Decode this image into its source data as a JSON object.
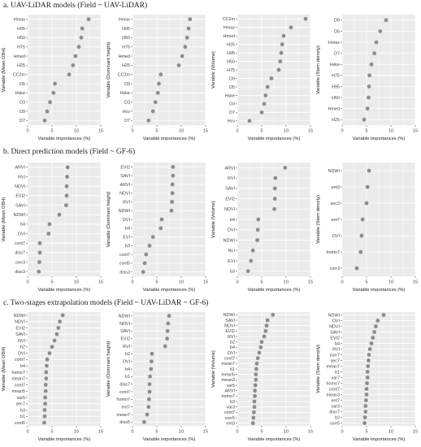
{
  "sections": [
    {
      "title": "a. UAV-LiDAR models (Field ~ UAV-LiDAR)"
    },
    {
      "title": "b. Direct prediction models (Field ~ GF-6)"
    },
    {
      "title": "c. Two-stages extrapolation models (Field ~ UAV-LiDAR ~ GF-6)"
    }
  ],
  "colors": {
    "panel_bg": "#ebebeb",
    "grid": "#ffffff",
    "point": "#8c8c8c",
    "text": "#444444"
  },
  "chart_data": [
    {
      "type": "scatter",
      "section": 0,
      "xlabel": "Variable importances (%)",
      "ylabel": "Variable (Mean DBH)",
      "xlim": [
        0,
        15
      ],
      "xticks": [
        0,
        5,
        10,
        15
      ],
      "grid": true,
      "categories": [
        "Hmax",
        "H95",
        "H50",
        "H75",
        "Hmed",
        "H25",
        "CC2m",
        "D5",
        "Hske",
        "D3",
        "D9",
        "D7"
      ],
      "values": [
        12.5,
        11.2,
        11.0,
        10.5,
        9.8,
        9.3,
        8.5,
        5.6,
        5.3,
        4.6,
        4.0,
        3.5
      ]
    },
    {
      "type": "scatter",
      "section": 0,
      "xlabel": "Variable importances (%)",
      "ylabel": "Variable (Dominant height)",
      "xlim": [
        0,
        15
      ],
      "xticks": [
        0,
        5,
        10,
        15
      ],
      "grid": true,
      "categories": [
        "Hmax",
        "H95",
        "H50",
        "H75",
        "Hmed",
        "H25",
        "CC2m",
        "D9",
        "Hske",
        "D3",
        "Hcv",
        "D7"
      ],
      "values": [
        11.8,
        11.5,
        11.2,
        10.8,
        10.2,
        9.5,
        5.8,
        5.4,
        5.2,
        4.7,
        4.2,
        3.3
      ]
    },
    {
      "type": "scatter",
      "section": 0,
      "xlabel": "Variable importances (%)",
      "ylabel": "Variable (Volume)",
      "xlim": [
        0,
        15
      ],
      "xticks": [
        0,
        5,
        10,
        15
      ],
      "grid": true,
      "categories": [
        "CC2m",
        "Hmax",
        "Hmed",
        "H25",
        "H95",
        "H50",
        "H75",
        "D9",
        "D5",
        "Hske",
        "D3",
        "D7",
        "Hcv"
      ],
      "values": [
        14.0,
        11.0,
        9.5,
        9.2,
        9.0,
        8.8,
        8.5,
        7.0,
        6.2,
        5.8,
        5.5,
        5.0,
        2.5
      ]
    },
    {
      "type": "scatter",
      "section": 0,
      "xlabel": "Variable importances (%)",
      "ylabel": "Variable (Stem density)",
      "xlim": [
        0,
        15
      ],
      "xticks": [
        0,
        5,
        10,
        15
      ],
      "grid": true,
      "categories": [
        "D9",
        "D5",
        "Hmax",
        "D7",
        "Hske",
        "H75",
        "H95",
        "H50",
        "Hmed",
        "H25"
      ],
      "values": [
        9.0,
        7.8,
        7.0,
        6.6,
        6.0,
        5.6,
        5.5,
        5.4,
        5.2,
        4.5
      ]
    },
    {
      "type": "scatter",
      "section": 1,
      "xlabel": "Variable importances (%)",
      "ylabel": "Variable (Mean DBH)",
      "xlim": [
        0,
        15
      ],
      "xticks": [
        0,
        5,
        10,
        15
      ],
      "grid": true,
      "categories": [
        "ARVI",
        "RVI",
        "NDVI",
        "EVI2",
        "SAVI",
        "NDWI",
        "b4",
        "DVI",
        "cont7",
        "diss7",
        "corr3",
        "diss3"
      ],
      "values": [
        8.2,
        8.1,
        8.0,
        8.0,
        7.9,
        6.5,
        4.5,
        4.3,
        2.5,
        2.5,
        2.4,
        2.3
      ]
    },
    {
      "type": "scatter",
      "section": 1,
      "xlabel": "Variable importances (%)",
      "ylabel": "Variable (Dominant height)",
      "xlim": [
        0,
        15
      ],
      "xticks": [
        0,
        5,
        10,
        15
      ],
      "grid": true,
      "categories": [
        "EVI2",
        "SAVI",
        "ARVI",
        "NDVI",
        "RVI",
        "NDWI",
        "DVI",
        "b4",
        "EVI",
        "b3",
        "cont7",
        "cont5",
        "diss3"
      ],
      "values": [
        8.3,
        8.3,
        8.2,
        8.2,
        8.1,
        8.0,
        6.0,
        5.8,
        4.2,
        3.5,
        2.8,
        2.5,
        2.2
      ]
    },
    {
      "type": "scatter",
      "section": 1,
      "xlabel": "Variable importances (%)",
      "ylabel": "Variable (Volume)",
      "xlim": [
        0,
        15
      ],
      "xticks": [
        0,
        5,
        10,
        15
      ],
      "grid": true,
      "categories": [
        "ARVI",
        "RVI",
        "SAVI",
        "EVI2",
        "NDVI",
        "b4",
        "DVI",
        "NDWI",
        "NLI",
        "EVI",
        "b3"
      ],
      "values": [
        9.8,
        7.8,
        7.7,
        7.7,
        7.6,
        4.3,
        4.2,
        4.1,
        3.2,
        2.8,
        2.2
      ]
    },
    {
      "type": "scatter",
      "section": 1,
      "xlabel": "Variable importances (%)",
      "ylabel": "Variable (Stem density)",
      "xlim": [
        0,
        15
      ],
      "xticks": [
        0,
        5,
        10,
        15
      ],
      "grid": true,
      "categories": [
        "NDWI",
        "ent3",
        "sec3",
        "ent7",
        "DVI",
        "homo7",
        "corr3"
      ],
      "values": [
        5.5,
        5.2,
        5.0,
        4.2,
        4.0,
        3.8,
        3.0
      ]
    },
    {
      "type": "scatter",
      "section": 2,
      "xlabel": "Variable importances (%)",
      "ylabel": "Variable (Mean DBH)",
      "xlim": [
        0,
        15
      ],
      "xticks": [
        0,
        5,
        10,
        15
      ],
      "grid": true,
      "categories": [
        "NDWI",
        "NDVI",
        "EVI2",
        "SAVI",
        "RVI",
        "b2",
        "DVI",
        "cont7",
        "b4",
        "homo7",
        "mean7",
        "cont7",
        "mean5",
        "var5",
        "sec7",
        "b3",
        "b1",
        "cont5"
      ],
      "values": [
        7.2,
        6.6,
        6.3,
        6.0,
        5.5,
        5.0,
        4.5,
        4.0,
        3.9,
        3.8,
        3.8,
        3.7,
        3.7,
        3.6,
        3.6,
        3.5,
        3.5,
        3.4
      ]
    },
    {
      "type": "scatter",
      "section": 2,
      "xlabel": "Variable importances (%)",
      "ylabel": "Variable (Dominant height)",
      "xlim": [
        0,
        15
      ],
      "xticks": [
        0,
        5,
        10,
        15
      ],
      "grid": true,
      "categories": [
        "NDWI",
        "NDVI",
        "SAVI",
        "EVI2",
        "RVI",
        "b2",
        "DVI",
        "b4",
        "b1",
        "diss7",
        "cont7",
        "homo7",
        "ent7",
        "mean7",
        "diss5"
      ],
      "values": [
        7.5,
        7.3,
        7.2,
        7.1,
        6.7,
        4.0,
        3.9,
        3.8,
        3.6,
        3.5,
        3.5,
        3.4,
        3.3,
        3.0,
        2.4
      ]
    },
    {
      "type": "scatter",
      "section": 2,
      "xlabel": "Variable importances (%)",
      "ylabel": "Variable (Volume)",
      "xlim": [
        0,
        15
      ],
      "xticks": [
        0,
        5,
        10,
        15
      ],
      "grid": true,
      "categories": [
        "NDWI",
        "SAVI",
        "NDVI",
        "EVI2",
        "RVI",
        "b2",
        "b4",
        "DVI",
        "cont7",
        "mean7",
        "b1",
        "mean5",
        "mean3",
        "var5",
        "ARVI",
        "homo7",
        "b3",
        "var3",
        "cont7",
        "corr5",
        "ent3"
      ],
      "values": [
        7.3,
        6.2,
        6.0,
        5.8,
        5.5,
        5.0,
        4.8,
        4.5,
        4.2,
        4.0,
        3.9,
        3.8,
        3.8,
        3.7,
        3.6,
        3.6,
        3.5,
        3.5,
        3.4,
        3.3,
        3.2
      ]
    },
    {
      "type": "scatter",
      "section": 2,
      "xlabel": "Variable importances (%)",
      "ylabel": "Variable (Stem density)",
      "xlim": [
        0,
        15
      ],
      "xticks": [
        0,
        5,
        10,
        15
      ],
      "grid": true,
      "categories": [
        "NDWI",
        "DVI",
        "NDVI",
        "SAVI",
        "EVI2",
        "b4",
        "RVI",
        "corr7",
        "sec7",
        "mean7",
        "b1",
        "var7",
        "homo7",
        "cont7",
        "mean3",
        "ent7",
        "var3",
        "diss7",
        "b2",
        "corr5"
      ],
      "values": [
        8.5,
        7.3,
        6.9,
        6.6,
        6.3,
        6.0,
        5.7,
        5.5,
        5.4,
        5.3,
        5.2,
        5.2,
        5.1,
        5.0,
        5.0,
        4.9,
        4.8,
        4.8,
        4.7,
        4.6
      ]
    }
  ]
}
